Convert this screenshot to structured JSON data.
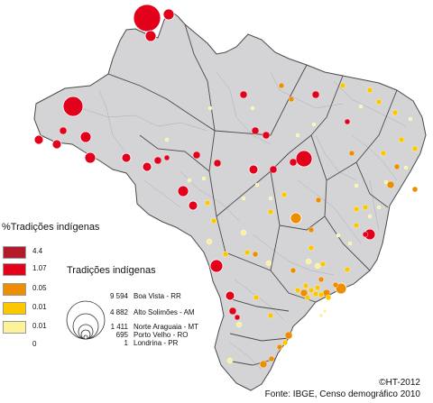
{
  "colors": {
    "states_fill": "#d4d4d7",
    "state_border": "#4a4a4a",
    "municipality_border": "#9fa3ad",
    "water": "#ffffff"
  },
  "legend_percent": {
    "title": "%Tradições indígenas",
    "classes": [
      {
        "label": "4.4",
        "color": "#b31b2a"
      },
      {
        "label": "1.07",
        "color": "#e3001b"
      },
      {
        "label": "0.05",
        "color": "#ed8e00"
      },
      {
        "label": "0.01",
        "color": "#fbc700"
      },
      {
        "label": "0.01",
        "color": "#fdf29b"
      },
      {
        "label": "0",
        "color": ""
      }
    ]
  },
  "legend_size": {
    "title": "Tradições indígenas",
    "entries": [
      {
        "value": "9 594",
        "place": "Boa Vista - RR"
      },
      {
        "value": "4 882",
        "place": "Alto Solimões - AM"
      },
      {
        "value": "1 411",
        "place": "Norte Araguaia - MT"
      },
      {
        "value": "695",
        "place": "Porto Velho - RO"
      },
      {
        "value": "1",
        "place": "Londrina - PR"
      }
    ]
  },
  "credits": {
    "author": "©HT-2012",
    "source": "Fonte: IBGE, Censo demográfico 2010"
  }
}
